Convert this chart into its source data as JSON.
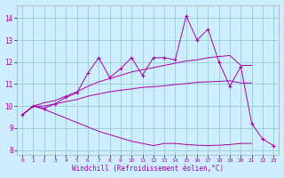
{
  "xlabel": "Windchill (Refroidissement éolien,°C)",
  "bg_color": "#cceeff",
  "line_color": "#aa00aa",
  "grid_color": "#99cccc",
  "x_ticks": [
    0,
    1,
    2,
    3,
    4,
    5,
    6,
    7,
    8,
    9,
    10,
    11,
    12,
    13,
    14,
    15,
    16,
    17,
    18,
    19,
    20,
    21,
    22,
    23
  ],
  "ylim": [
    7.8,
    14.6
  ],
  "xlim": [
    -0.5,
    23.5
  ],
  "y_ticks": [
    8,
    9,
    10,
    11,
    12,
    13,
    14
  ],
  "series_marked": [
    9.6,
    10.0,
    9.9,
    10.1,
    10.4,
    10.6,
    11.5,
    12.2,
    11.3,
    11.7,
    12.2,
    11.4,
    12.2,
    12.2,
    12.1,
    14.1,
    13.0,
    13.5,
    12.0,
    10.9,
    11.8,
    9.2,
    8.5,
    8.2
  ],
  "series_smooth1": [
    9.6,
    10.0,
    10.15,
    10.25,
    10.45,
    10.65,
    10.9,
    11.1,
    11.25,
    11.4,
    11.55,
    11.65,
    11.75,
    11.85,
    11.95,
    12.05,
    12.1,
    12.2,
    12.25,
    12.3,
    11.85,
    11.85
  ],
  "series_smooth2": [
    9.6,
    10.0,
    10.0,
    10.1,
    10.2,
    10.3,
    10.45,
    10.55,
    10.65,
    10.72,
    10.78,
    10.85,
    10.88,
    10.92,
    10.98,
    11.02,
    11.08,
    11.1,
    11.12,
    11.15,
    11.05,
    11.05
  ],
  "series_smooth3": [
    9.6,
    10.0,
    9.85,
    9.65,
    9.45,
    9.25,
    9.05,
    8.85,
    8.7,
    8.55,
    8.4,
    8.3,
    8.2,
    8.3,
    8.3,
    8.25,
    8.22,
    8.2,
    8.22,
    8.25,
    8.3,
    8.3
  ]
}
